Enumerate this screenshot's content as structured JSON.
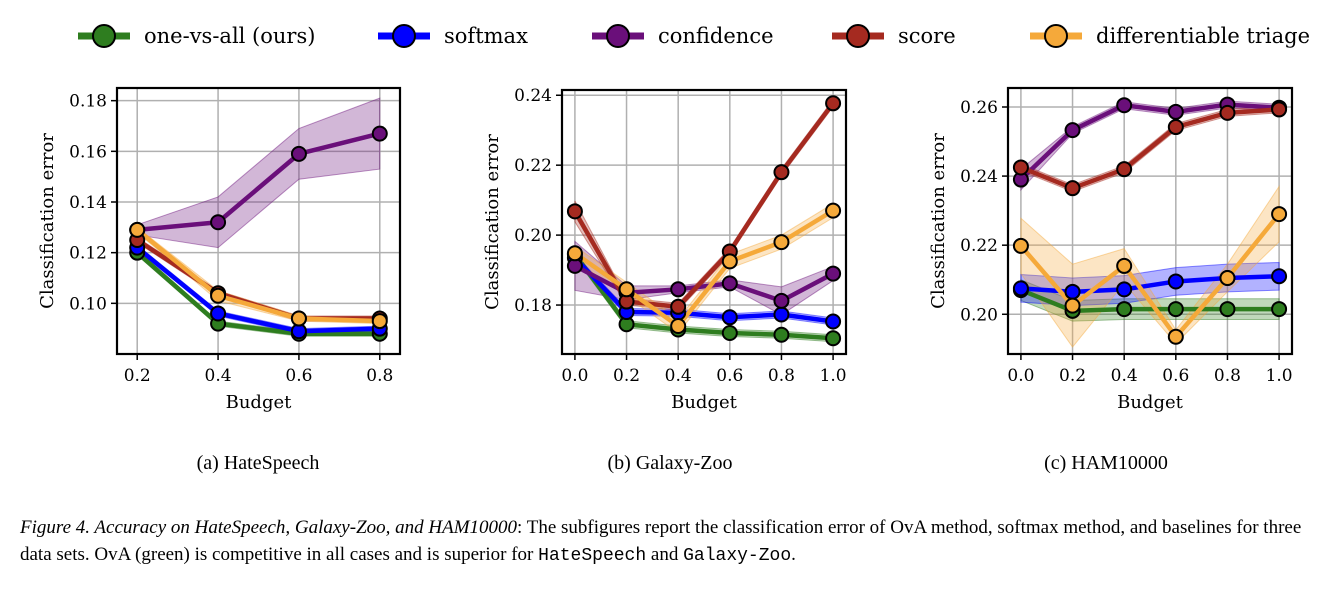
{
  "legend": [
    {
      "label": "one-vs-all (ours)",
      "color": "#2e7d1f"
    },
    {
      "label": "softmax",
      "color": "#0000ff"
    },
    {
      "label": "confidence",
      "color": "#6a0f7a"
    },
    {
      "label": "score",
      "color": "#a52a20"
    },
    {
      "label": "differentiable triage",
      "color": "#f5a93a"
    }
  ],
  "chart_data": [
    {
      "type": "line",
      "title": "(a) HateSpeech",
      "xlabel": "Budget",
      "ylabel": "Classification error",
      "x": [
        0.2,
        0.4,
        0.6,
        0.8
      ],
      "xlim": [
        0.15,
        0.85
      ],
      "ylim": [
        0.08,
        0.185
      ],
      "xticks": [
        0.2,
        0.4,
        0.6,
        0.8
      ],
      "xtick_labels": [
        "0.2",
        "0.4",
        "0.6",
        "0.8"
      ],
      "yticks": [
        0.1,
        0.12,
        0.14,
        0.16,
        0.18
      ],
      "ytick_labels": [
        "0.10",
        "0.12",
        "0.14",
        "0.16",
        "0.18"
      ],
      "grid": true,
      "series": [
        {
          "name": "one-vs-all (ours)",
          "values": [
            0.12,
            0.092,
            0.088,
            0.088
          ],
          "band": [
            0.001,
            0.001,
            0.001,
            0.001
          ]
        },
        {
          "name": "softmax",
          "values": [
            0.122,
            0.096,
            0.089,
            0.09
          ],
          "band": [
            0.001,
            0.001,
            0.001,
            0.001
          ]
        },
        {
          "name": "confidence",
          "values": [
            0.129,
            0.132,
            0.159,
            0.167
          ],
          "band": [
            0.002,
            0.01,
            0.01,
            0.014
          ]
        },
        {
          "name": "score",
          "values": [
            0.125,
            0.104,
            0.094,
            0.094
          ],
          "band": [
            0.001,
            0.001,
            0.001,
            0.001
          ]
        },
        {
          "name": "differentiable triage",
          "values": [
            0.129,
            0.103,
            0.094,
            0.093
          ],
          "band": [
            0.001,
            0.002,
            0.001,
            0.001
          ]
        }
      ]
    },
    {
      "type": "line",
      "title": "(b) Galaxy-Zoo",
      "xlabel": "Budget",
      "ylabel": "Classification error",
      "x": [
        0.0,
        0.2,
        0.4,
        0.6,
        0.8,
        1.0
      ],
      "xlim": [
        -0.05,
        1.05
      ],
      "ylim": [
        0.166,
        0.2415
      ],
      "xticks": [
        0.0,
        0.2,
        0.4,
        0.6,
        0.8,
        1.0
      ],
      "xtick_labels": [
        "0.0",
        "0.2",
        "0.4",
        "0.6",
        "0.8",
        "1.0"
      ],
      "yticks": [
        0.18,
        0.2,
        0.22,
        0.24
      ],
      "ytick_labels": [
        "0.18",
        "0.20",
        "0.22",
        "0.24"
      ],
      "grid": true,
      "series": [
        {
          "name": "one-vs-all (ours)",
          "values": [
            0.1945,
            0.1745,
            0.173,
            0.172,
            0.1715,
            0.1705
          ],
          "band": [
            0.001,
            0.001,
            0.001,
            0.001,
            0.001,
            0.001
          ]
        },
        {
          "name": "softmax",
          "values": [
            0.1935,
            0.178,
            0.1778,
            0.1765,
            0.1773,
            0.1753
          ],
          "band": [
            0.001,
            0.001,
            0.001,
            0.001,
            0.001,
            0.001
          ]
        },
        {
          "name": "confidence",
          "values": [
            0.1912,
            0.1835,
            0.1845,
            0.1862,
            0.1812,
            0.189
          ],
          "band": [
            0.007,
            0.002,
            0.001,
            0.001,
            0.004,
            0.002
          ]
        },
        {
          "name": "score",
          "values": [
            0.2068,
            0.181,
            0.1795,
            0.1953,
            0.218,
            0.2377
          ],
          "band": [
            0.003,
            0.001,
            0.001,
            0.001,
            0.001,
            0.001
          ]
        },
        {
          "name": "differentiable triage",
          "values": [
            0.1948,
            0.1845,
            0.174,
            0.1925,
            0.198,
            0.207
          ],
          "band": [
            0.002,
            0.002,
            0.002,
            0.002,
            0.002,
            0.002
          ]
        }
      ]
    },
    {
      "type": "line",
      "title": "(c) HAM10000",
      "xlabel": "Budget",
      "ylabel": "Classification error",
      "x": [
        0.0,
        0.2,
        0.4,
        0.6,
        0.8,
        1.0
      ],
      "xlim": [
        -0.05,
        1.05
      ],
      "ylim": [
        0.1885,
        0.2655
      ],
      "xticks": [
        0.0,
        0.2,
        0.4,
        0.6,
        0.8,
        1.0
      ],
      "xtick_labels": [
        "0.0",
        "0.2",
        "0.4",
        "0.6",
        "0.8",
        "1.0"
      ],
      "yticks": [
        0.2,
        0.22,
        0.24,
        0.26
      ],
      "ytick_labels": [
        "0.20",
        "0.22",
        "0.24",
        "0.26"
      ],
      "grid": true,
      "series": [
        {
          "name": "one-vs-all (ours)",
          "values": [
            0.207,
            0.201,
            0.2015,
            0.2015,
            0.2015,
            0.2015
          ],
          "band": [
            0.003,
            0.003,
            0.003,
            0.003,
            0.003,
            0.003
          ]
        },
        {
          "name": "softmax",
          "values": [
            0.2075,
            0.2065,
            0.2072,
            0.2095,
            0.2105,
            0.211
          ],
          "band": [
            0.004,
            0.004,
            0.004,
            0.004,
            0.004,
            0.004
          ]
        },
        {
          "name": "confidence",
          "values": [
            0.239,
            0.2533,
            0.2605,
            0.2586,
            0.2607,
            0.2598
          ],
          "band": [
            0.003,
            0.001,
            0.001,
            0.001,
            0.001,
            0.001
          ]
        },
        {
          "name": "score",
          "values": [
            0.2425,
            0.2365,
            0.242,
            0.2542,
            0.2583,
            0.2593
          ],
          "band": [
            0.001,
            0.001,
            0.001,
            0.001,
            0.001,
            0.001
          ]
        },
        {
          "name": "differentiable triage",
          "values": [
            0.2198,
            0.2025,
            0.214,
            0.1935,
            0.2105,
            0.229
          ],
          "band": [
            0.008,
            0.012,
            0.005,
            0.002,
            0.004,
            0.008
          ]
        }
      ]
    }
  ],
  "caption": {
    "label": "Figure 4. Accuracy on HateSpeech, Galaxy-Zoo, and HAM10000",
    "text_1": ": The subfigures report the classification error of OvA method, softmax method, and baselines for three data sets. OvA (green) is competitive in all cases and is superior for ",
    "mono_1": "HateSpeech",
    "text_2": " and ",
    "mono_2": "Galaxy-Zoo",
    "text_3": "."
  }
}
